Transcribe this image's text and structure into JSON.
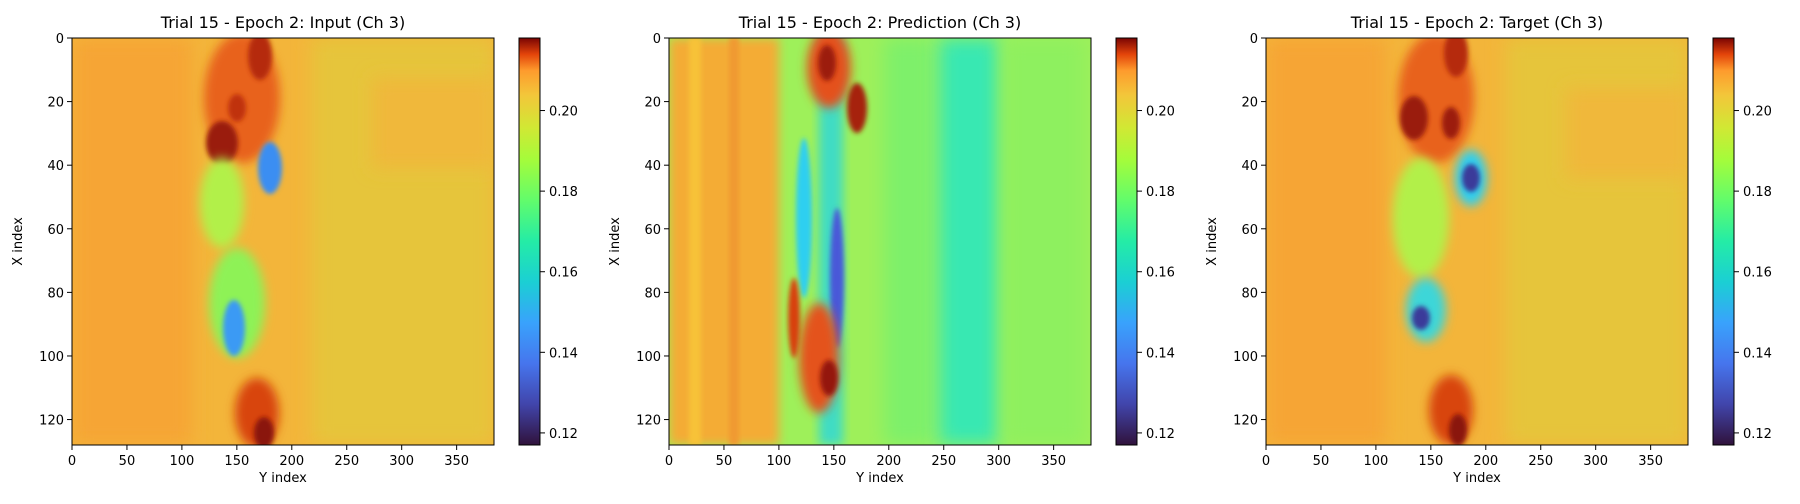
{
  "chart_data": [
    {
      "type": "heatmap",
      "title": "Trial 15 - Epoch 2: Input (Ch 3)",
      "xlabel": "Y index",
      "ylabel": "X index",
      "xlim": [
        0,
        384
      ],
      "ylim": [
        128,
        0
      ],
      "xticks": [
        "0",
        "50",
        "100",
        "150",
        "200",
        "250",
        "300",
        "350"
      ],
      "yticks": [
        "0",
        "20",
        "40",
        "60",
        "80",
        "100",
        "120"
      ],
      "colormap": "turbo",
      "colorbar": {
        "min": 0.117,
        "max": 0.218,
        "ticks": [
          "0.12",
          "0.14",
          "0.16",
          "0.18",
          "0.20"
        ]
      }
    },
    {
      "type": "heatmap",
      "title": "Trial 15 - Epoch 2: Prediction (Ch 3)",
      "xlabel": "Y index",
      "ylabel": "X index",
      "xlim": [
        0,
        384
      ],
      "ylim": [
        128,
        0
      ],
      "xticks": [
        "0",
        "50",
        "100",
        "150",
        "200",
        "250",
        "300",
        "350"
      ],
      "yticks": [
        "0",
        "20",
        "40",
        "60",
        "80",
        "100",
        "120"
      ],
      "colormap": "turbo",
      "colorbar": {
        "min": 0.117,
        "max": 0.218,
        "ticks": [
          "0.12",
          "0.14",
          "0.16",
          "0.18",
          "0.20"
        ]
      }
    },
    {
      "type": "heatmap",
      "title": "Trial 15 - Epoch 2: Target (Ch 3)",
      "xlabel": "Y index",
      "ylabel": "X index",
      "xlim": [
        0,
        384
      ],
      "ylim": [
        128,
        0
      ],
      "xticks": [
        "0",
        "50",
        "100",
        "150",
        "200",
        "250",
        "300",
        "350"
      ],
      "yticks": [
        "0",
        "20",
        "40",
        "60",
        "80",
        "100",
        "120"
      ],
      "colormap": "turbo",
      "colorbar": {
        "min": 0.117,
        "max": 0.218,
        "ticks": [
          "0.12",
          "0.14",
          "0.16",
          "0.18",
          "0.20"
        ]
      }
    }
  ]
}
